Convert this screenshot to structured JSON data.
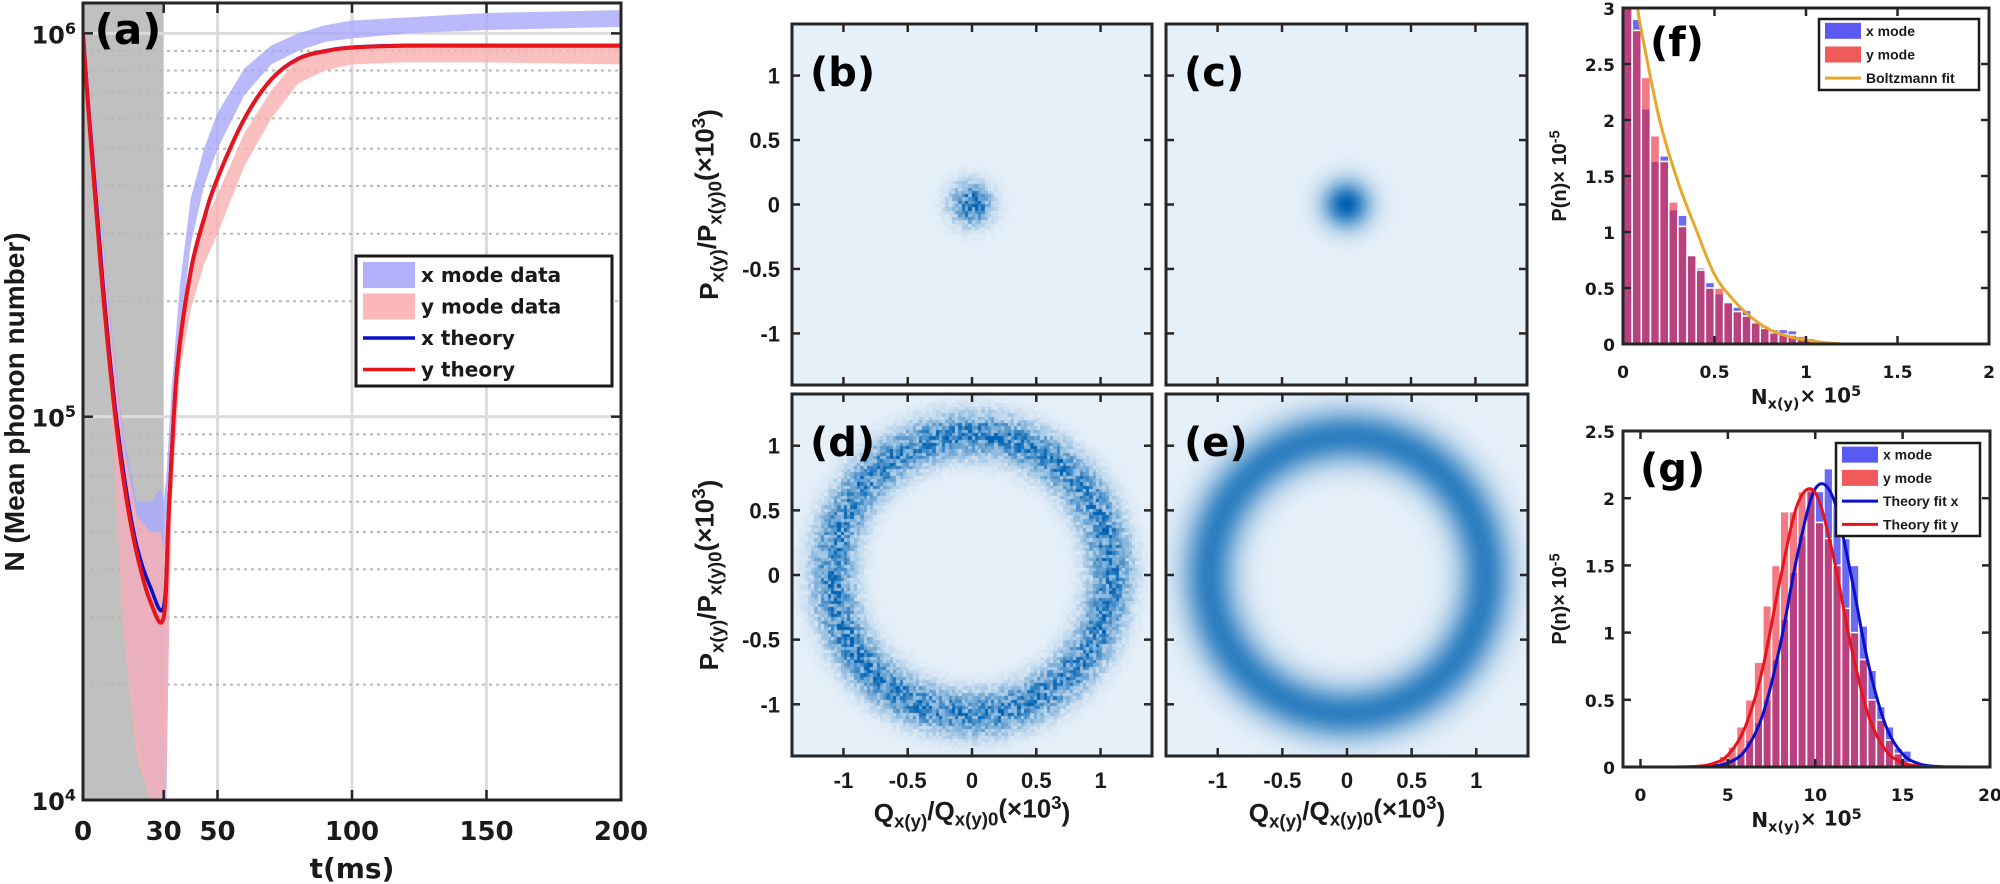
{
  "chart_data": [
    {
      "panel": "(a)",
      "type": "line",
      "xlabel": "t(ms)",
      "ylabel": "N (Mean phonon number)",
      "xlim": [
        0,
        200
      ],
      "ylim": [
        10000,
        1200000
      ],
      "yscale": "log",
      "grid": "on",
      "shaded_region_t": [
        0,
        30
      ],
      "xticks": [
        0,
        30,
        50,
        100,
        150,
        200
      ],
      "xtick_labels": [
        "0",
        "30",
        "50",
        "100",
        "150",
        "200"
      ],
      "yticks": [
        10000,
        100000,
        1000000
      ],
      "ytick_labels": [
        {
          "base": "10",
          "exp": "4"
        },
        {
          "base": "10",
          "exp": "5"
        },
        {
          "base": "10",
          "exp": "6"
        }
      ],
      "legend_position": "center-right",
      "colors": {
        "x_data": "#a8a8fa",
        "y_data": "#f9b0b0",
        "x_theory": "#0a10c8",
        "y_theory": "#e8141c",
        "shade": "#c0c0c0"
      },
      "series": [
        {
          "name": "x mode data",
          "kind": "band",
          "t": [
            0,
            2,
            5,
            10,
            15,
            20,
            25,
            29,
            30,
            31,
            33,
            36,
            40,
            45,
            50,
            60,
            70,
            80,
            90,
            100,
            120,
            150,
            200
          ],
          "low": [
            900000,
            620000,
            350000,
            130000,
            30000,
            15000,
            10000,
            10000,
            10000,
            10000,
            80000,
            160000,
            280000,
            400000,
            500000,
            690000,
            830000,
            900000,
            950000,
            970000,
            1000000,
            1020000,
            1040000
          ],
          "high": [
            1100000,
            800000,
            460000,
            190000,
            90000,
            60000,
            60000,
            65000,
            60000,
            70000,
            120000,
            220000,
            370000,
            500000,
            620000,
            810000,
            930000,
            1000000,
            1050000,
            1080000,
            1100000,
            1130000,
            1150000
          ]
        },
        {
          "name": "y mode data",
          "kind": "band",
          "t": [
            0,
            2,
            5,
            10,
            15,
            20,
            25,
            29,
            30,
            31,
            33,
            36,
            40,
            45,
            50,
            60,
            70,
            80,
            90,
            100,
            120,
            150,
            200
          ],
          "low": [
            880000,
            600000,
            330000,
            120000,
            28000,
            13000,
            10000,
            10000,
            10000,
            12000,
            60000,
            130000,
            190000,
            250000,
            300000,
            450000,
            600000,
            740000,
            800000,
            830000,
            840000,
            840000,
            830000
          ],
          "high": [
            1080000,
            780000,
            440000,
            180000,
            85000,
            55000,
            50000,
            50000,
            45000,
            50000,
            100000,
            180000,
            250000,
            320000,
            380000,
            550000,
            710000,
            860000,
            910000,
            930000,
            940000,
            940000,
            930000
          ]
        },
        {
          "name": "x theory",
          "kind": "line",
          "t": [
            0,
            2,
            5,
            8,
            12,
            16,
            20,
            25,
            30,
            32,
            35,
            40,
            45,
            50,
            60,
            70,
            80,
            90,
            100,
            120,
            150,
            200
          ],
          "N": [
            1000000,
            650000,
            360000,
            200000,
            105000,
            65000,
            46000,
            36000,
            32000,
            60000,
            135000,
            240000,
            330000,
            420000,
            600000,
            760000,
            860000,
            900000,
            920000,
            930000,
            930000,
            930000
          ]
        },
        {
          "name": "y theory",
          "kind": "line",
          "t": [
            0,
            2,
            5,
            8,
            12,
            16,
            20,
            25,
            30,
            32,
            35,
            40,
            45,
            50,
            60,
            70,
            80,
            90,
            100,
            120,
            150,
            200
          ],
          "N": [
            1000000,
            630000,
            340000,
            190000,
            100000,
            62000,
            44000,
            33000,
            30000,
            58000,
            133000,
            238000,
            328000,
            418000,
            598000,
            758000,
            858000,
            898000,
            918000,
            928000,
            928000,
            928000
          ]
        }
      ]
    },
    {
      "panel": "(f)",
      "type": "bar",
      "xlabel_parts": [
        {
          "t": "N",
          "s": ""
        },
        {
          "t": "x(y)",
          "s": "sub"
        },
        {
          "t": "× 10",
          "s": ""
        },
        {
          "t": "5",
          "s": "sup"
        }
      ],
      "ylabel_parts": [
        {
          "t": "P(n)× 10",
          "s": ""
        },
        {
          "t": "-5",
          "s": "sup"
        }
      ],
      "xlim": [
        0,
        2
      ],
      "ylim": [
        0,
        3
      ],
      "xticks": [
        0,
        0.5,
        1,
        1.5,
        2
      ],
      "xtick_labels": [
        "0",
        "0.5",
        "1",
        "1.5",
        "2"
      ],
      "yticks": [
        0,
        0.5,
        1,
        1.5,
        2,
        2.5,
        3
      ],
      "ytick_labels": [
        "0",
        "0.5",
        "1",
        "1.5",
        "2",
        "2.5",
        "3"
      ],
      "bin_width": 0.05,
      "bin_start": 0,
      "legend_position": "top-right",
      "colors": {
        "x_mode": "#5a5af2",
        "y_mode": "#f0505a",
        "fit": "#e6a82a"
      },
      "series": [
        {
          "name": "x mode",
          "kind": "hist",
          "values": [
            3.0,
            2.9,
            2.1,
            1.63,
            1.68,
            1.2,
            1.15,
            0.8,
            0.68,
            0.55,
            0.45,
            0.38,
            0.33,
            0.3,
            0.2,
            0.16,
            0.13,
            0.13,
            0.12,
            0.07,
            0.05,
            0.03
          ]
        },
        {
          "name": "y mode",
          "kind": "hist",
          "values": [
            3.0,
            2.8,
            2.38,
            1.86,
            1.63,
            1.27,
            1.05,
            0.79,
            0.66,
            0.5,
            0.5,
            0.37,
            0.29,
            0.25,
            0.19,
            0.14,
            0.1,
            0.09,
            0.08,
            0.05,
            0.03,
            0.02
          ]
        },
        {
          "name": "Boltzmann fit",
          "kind": "line",
          "x": [
            0.08,
            0.1,
            0.2,
            0.3,
            0.4,
            0.5,
            0.6,
            0.7,
            0.8,
            0.9,
            1.0,
            1.1,
            1.2
          ],
          "y": [
            3.0,
            2.8,
            2.0,
            1.45,
            1.02,
            0.62,
            0.4,
            0.24,
            0.13,
            0.07,
            0.035,
            0.012,
            0.0
          ]
        }
      ]
    },
    {
      "panel": "(g)",
      "type": "bar",
      "xlabel_parts": [
        {
          "t": "N",
          "s": ""
        },
        {
          "t": "x(y)",
          "s": "sub"
        },
        {
          "t": "× 10",
          "s": ""
        },
        {
          "t": "5",
          "s": "sup"
        }
      ],
      "ylabel_parts": [
        {
          "t": "P(n)× 10",
          "s": ""
        },
        {
          "t": "-5",
          "s": "sup"
        }
      ],
      "xlim": [
        -1,
        20
      ],
      "ylim": [
        0,
        2.5
      ],
      "xticks": [
        0,
        5,
        10,
        15,
        20
      ],
      "xtick_labels": [
        "0",
        "5",
        "10",
        "15",
        "20"
      ],
      "yticks": [
        0,
        0.5,
        1,
        1.5,
        2,
        2.5
      ],
      "ytick_labels": [
        "0",
        "0.5",
        "1",
        "1.5",
        "2",
        "2.5"
      ],
      "bin_width": 0.5,
      "bin_start": 4.5,
      "legend_position": "top-right",
      "colors": {
        "x_mode": "#5a5af2",
        "y_mode": "#f0505a",
        "fit_x": "#0a10c8",
        "fit_y": "#e8141c"
      },
      "series": [
        {
          "name": "x mode",
          "kind": "hist",
          "values": [
            0.03,
            0.06,
            0.1,
            0.2,
            0.33,
            0.5,
            0.8,
            1.1,
            1.45,
            1.72,
            2.05,
            2.05,
            2.22,
            1.95,
            1.7,
            1.5,
            1.05,
            0.72,
            0.45,
            0.3,
            0.14,
            0.12,
            0.03
          ]
        },
        {
          "name": "y mode",
          "kind": "hist",
          "values": [
            0.08,
            0.15,
            0.3,
            0.5,
            0.78,
            1.2,
            1.5,
            1.9,
            1.9,
            2.05,
            2.08,
            1.82,
            1.7,
            1.5,
            1.18,
            1.0,
            0.8,
            0.5,
            0.35,
            0.2,
            0.1,
            0.03,
            0.01
          ]
        },
        {
          "name": "Theory fit x",
          "kind": "line",
          "x": [
            2,
            3,
            4,
            5,
            6,
            7,
            8,
            9,
            10,
            11,
            12,
            13,
            14,
            15,
            16,
            17,
            18,
            19
          ],
          "y": [
            0.0,
            0.0007,
            0.0053,
            0.03,
            0.125,
            0.39,
            0.91,
            1.59,
            2.07,
            2.01,
            1.46,
            0.79,
            0.32,
            0.097,
            0.022,
            0.004,
            0.0005,
            0.0
          ]
        },
        {
          "name": "Theory fit y",
          "kind": "line",
          "x": [
            2,
            3,
            4,
            5,
            6,
            7,
            8,
            9,
            10,
            11,
            12,
            13,
            14,
            15,
            16,
            17,
            18,
            19
          ],
          "y": [
            0.0004,
            0.0033,
            0.02,
            0.088,
            0.3,
            0.74,
            1.4,
            1.96,
            2.04,
            1.59,
            0.93,
            0.4,
            0.13,
            0.032,
            0.006,
            0.0008,
            0.0,
            0.0
          ]
        }
      ]
    },
    {
      "panel": "(b)-(e)",
      "type": "heatmap",
      "xlabel_parts": [
        {
          "t": "Q",
          "s": ""
        },
        {
          "t": "x(y)",
          "s": "sub"
        },
        {
          "t": "/Q",
          "s": ""
        },
        {
          "t": "x(y)0",
          "s": "sub"
        },
        {
          "t": "(×10",
          "s": ""
        },
        {
          "t": "3",
          "s": "sup"
        },
        {
          "t": ")",
          "s": ""
        }
      ],
      "ylabel_parts": [
        {
          "t": "P",
          "s": ""
        },
        {
          "t": "x(y)",
          "s": "sub"
        },
        {
          "t": "/P",
          "s": ""
        },
        {
          "t": "x(y)0",
          "s": "sub"
        },
        {
          "t": "(×10",
          "s": ""
        },
        {
          "t": "3",
          "s": "sup"
        },
        {
          "t": ")",
          "s": ""
        }
      ],
      "xlim": [
        -1.4,
        1.4
      ],
      "ylim": [
        -1.4,
        1.4
      ],
      "ticks": [
        -1,
        -0.5,
        0,
        0.5,
        1
      ],
      "tick_labels": [
        "-1",
        "-0.5",
        "0",
        "0.5",
        "1"
      ],
      "colors": {
        "background": "#e6f0f9",
        "peak": "#0062b2"
      },
      "panels": [
        {
          "label": "(b)",
          "distribution": "spot",
          "radius": 0,
          "sigma": 0.1,
          "style": "measured"
        },
        {
          "label": "(c)",
          "distribution": "spot",
          "radius": 0,
          "sigma": 0.12,
          "style": "simulated"
        },
        {
          "label": "(d)",
          "distribution": "ring",
          "radius": 1.08,
          "sigma": 0.11,
          "style": "measured"
        },
        {
          "label": "(e)",
          "distribution": "ring",
          "radius": 1.07,
          "sigma": 0.14,
          "style": "simulated"
        }
      ]
    }
  ]
}
